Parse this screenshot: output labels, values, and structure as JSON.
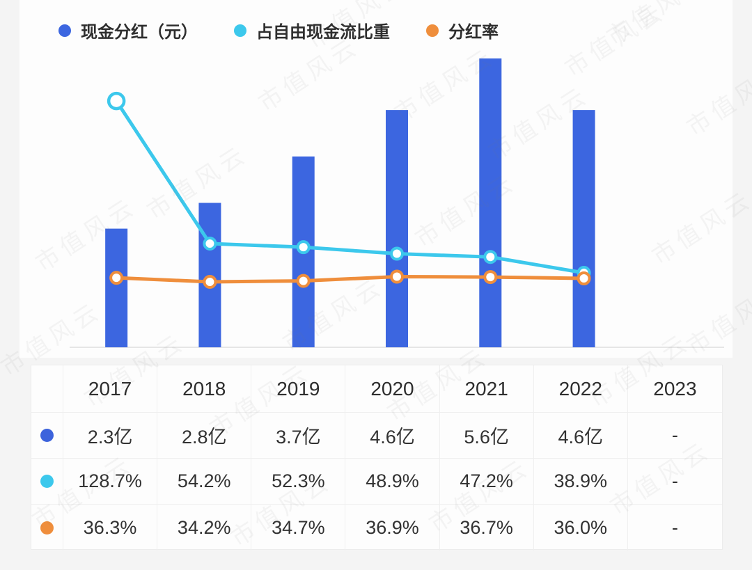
{
  "watermark": {
    "text": "市值风云"
  },
  "legend": {
    "items": [
      {
        "label": "现金分红（元）",
        "color": "#3c66e0"
      },
      {
        "label": "占自由现金流比重",
        "color": "#3cc8ec"
      },
      {
        "label": "分红率",
        "color": "#ef8e3c"
      }
    ]
  },
  "chart_data": {
    "type": "bar",
    "categories": [
      "2017",
      "2018",
      "2019",
      "2020",
      "2021",
      "2022",
      "2023"
    ],
    "series": [
      {
        "name": "现金分红（元）",
        "type": "bar",
        "unit": "亿",
        "color": "#3c66e0",
        "values": [
          2.3,
          2.8,
          3.7,
          4.6,
          5.6,
          4.6,
          null
        ]
      },
      {
        "name": "占自由现金流比重",
        "type": "line",
        "unit": "%",
        "color": "#3cc8ec",
        "start_marker": "ring",
        "values": [
          128.7,
          54.2,
          52.3,
          48.9,
          47.2,
          38.9,
          null
        ]
      },
      {
        "name": "分红率",
        "type": "line",
        "unit": "%",
        "color": "#ef8e3c",
        "start_marker": "dot",
        "values": [
          36.3,
          34.2,
          34.7,
          36.9,
          36.7,
          36.0,
          null
        ]
      }
    ],
    "title": "",
    "xlabel": "",
    "ylabel": "",
    "bar_ylim": [
      0,
      6.73
    ],
    "pct_ylim": [
      0,
      181.5
    ],
    "grid": false,
    "legend_position": "top-left",
    "baseline_color": "#e6e6e6"
  },
  "table": {
    "header": [
      "",
      "2017",
      "2018",
      "2019",
      "2020",
      "2021",
      "2022",
      "2023"
    ],
    "rows": [
      {
        "icon": "blue-series-dot",
        "icon_color": "#3c63dc",
        "cells": [
          "2.3亿",
          "2.8亿",
          "3.7亿",
          "4.6亿",
          "5.6亿",
          "4.6亿",
          "-"
        ]
      },
      {
        "icon": "cyan-series-dot",
        "icon_color": "#3cc8ec",
        "cells": [
          "128.7%",
          "54.2%",
          "52.3%",
          "48.9%",
          "47.2%",
          "38.9%",
          "-"
        ]
      },
      {
        "icon": "orange-series-dot",
        "icon_color": "#ef8e3c",
        "cells": [
          "36.3%",
          "34.2%",
          "34.7%",
          "36.9%",
          "36.7%",
          "36.0%",
          "-"
        ]
      }
    ]
  }
}
